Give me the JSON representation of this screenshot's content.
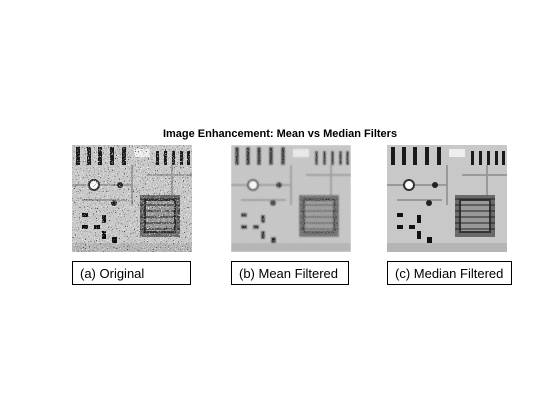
{
  "figure": {
    "title": "Image Enhancement: Mean vs Median Filters",
    "panels": [
      {
        "caption": "(a) Original"
      },
      {
        "caption": "(b) Mean Filtered"
      },
      {
        "caption": "(c) Median Filtered"
      }
    ]
  }
}
